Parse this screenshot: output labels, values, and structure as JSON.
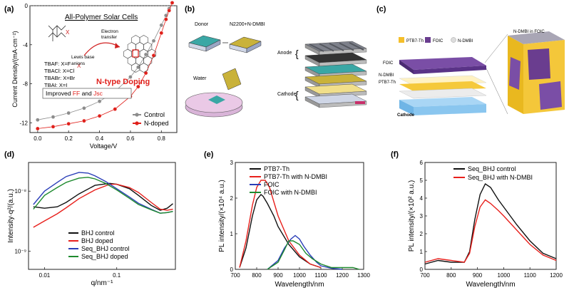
{
  "panels": {
    "a": {
      "label": "(a)",
      "title": "All-Polymer Solar Cells",
      "anions": [
        "TBAF: X=F",
        "TBACl: X=Cl",
        "TBABr: X=Br",
        "TBAI: X=I"
      ],
      "anion_symbol": "X",
      "electron_transfer": "Electron\ntransfer",
      "lewis": "Lewis base\nanions",
      "ntype": "N-type Doping",
      "improved_prefix": "Improved",
      "improved_ff": "FF",
      "improved_and": "and",
      "improved_jsc": "Jsc"
    },
    "b": {
      "label": "(b)",
      "donor": "Donor",
      "n2200": "N2200+N-DMBI",
      "water": "Water",
      "anode": "Anode",
      "cathode": "Cathode"
    },
    "c": {
      "label": "(c)",
      "legend": [
        "PTB7-Th",
        "FOIC",
        "N-DMBI"
      ],
      "foic": "FOIC",
      "ndmbi": "N-DMBI",
      "ptb7": "PTB7-Th",
      "cathode": "Cathode",
      "inset": "N-DMBI in FOIC"
    },
    "d": {
      "label": "(d)"
    },
    "e": {
      "label": "(e)"
    },
    "f": {
      "label": "(f)"
    }
  },
  "colors": {
    "control": "#8c8c8c",
    "ndoped": "#e0201b",
    "black": "#111111",
    "red": "#e8201c",
    "blue": "#2a3eb8",
    "green": "#1e8a2e"
  },
  "chart_data": [
    {
      "id": "a",
      "type": "line",
      "ylabel": "Current Density/(mA·cm⁻²)",
      "xlabel": "Voltage/V",
      "xlim": [
        -0.05,
        0.9
      ],
      "ylim": [
        -13,
        0
      ],
      "xticks": [
        "0.0",
        "0.2",
        "0.4",
        "0.6",
        "0.8"
      ],
      "yticks": [
        "0",
        "-4",
        "-8",
        "-12"
      ],
      "legend_position": "bottom-right",
      "series": [
        {
          "name": "Control",
          "x": [
            0,
            0.1,
            0.2,
            0.3,
            0.4,
            0.5,
            0.6,
            0.65,
            0.7,
            0.75,
            0.8,
            0.83,
            0.85,
            0.87
          ],
          "y": [
            -11.7,
            -11.4,
            -11.0,
            -10.5,
            -9.8,
            -8.8,
            -7.3,
            -6.3,
            -5.0,
            -3.6,
            -2.0,
            -1.0,
            -0.3,
            0.3
          ]
        },
        {
          "name": "N-doped",
          "x": [
            0,
            0.1,
            0.2,
            0.3,
            0.4,
            0.5,
            0.6,
            0.65,
            0.7,
            0.75,
            0.8,
            0.83,
            0.85,
            0.87
          ],
          "y": [
            -12.6,
            -12.4,
            -12.1,
            -11.8,
            -11.3,
            -10.6,
            -9.3,
            -8.3,
            -6.9,
            -5.1,
            -2.8,
            -1.4,
            -0.5,
            0.3
          ]
        }
      ]
    },
    {
      "id": "d",
      "type": "line",
      "ylabel": "Intensity·q²/(a.u.)",
      "xlabel": "q/nm⁻¹",
      "x_scale": "log",
      "y_scale": "log",
      "xlim": [
        0.006,
        0.65
      ],
      "ylim": [
        5e-10,
        3e-08
      ],
      "xticks": [
        "0.01",
        "0.1"
      ],
      "yticks": [
        "10⁻⁸",
        "10⁻⁹"
      ],
      "legend_position": "bottom-center",
      "series": [
        {
          "name": "BHJ control",
          "x": [
            0.007,
            0.01,
            0.015,
            0.02,
            0.03,
            0.05,
            0.08,
            0.1,
            0.15,
            0.2,
            0.3,
            0.4,
            0.5,
            0.6
          ],
          "y": [
            5.5e-09,
            5.2e-09,
            5.5e-09,
            6.5e-09,
            9e-09,
            1.25e-08,
            1.35e-08,
            1.3e-08,
            1.1e-08,
            8.5e-09,
            5.8e-09,
            4.8e-09,
            5.2e-09,
            6.2e-09
          ]
        },
        {
          "name": "BHJ  doped",
          "x": [
            0.007,
            0.01,
            0.015,
            0.02,
            0.03,
            0.05,
            0.08,
            0.1,
            0.15,
            0.2,
            0.3,
            0.4,
            0.5,
            0.6
          ],
          "y": [
            2.5e-09,
            3.2e-09,
            4.2e-09,
            5.3e-09,
            7.5e-09,
            1.05e-08,
            1.3e-08,
            1.3e-08,
            1.15e-08,
            9.5e-09,
            6.5e-09,
            5e-09,
            4.8e-09,
            5e-09
          ]
        },
        {
          "name": "Seq_BHJ control",
          "x": [
            0.007,
            0.01,
            0.015,
            0.02,
            0.03,
            0.04,
            0.05,
            0.07,
            0.1,
            0.15,
            0.2,
            0.3,
            0.4,
            0.5,
            0.6
          ],
          "y": [
            6e-09,
            1e-08,
            1.4e-08,
            1.75e-08,
            2.05e-08,
            2e-08,
            1.8e-08,
            1.45e-08,
            1.1e-08,
            8e-09,
            6.3e-09,
            5e-09,
            4.3e-09,
            4.4e-09,
            4.6e-09
          ]
        },
        {
          "name": "Seq_BHJ  doped",
          "x": [
            0.007,
            0.01,
            0.015,
            0.02,
            0.03,
            0.04,
            0.05,
            0.07,
            0.1,
            0.15,
            0.2,
            0.3,
            0.4,
            0.5,
            0.6
          ],
          "y": [
            5e-09,
            8.5e-09,
            1.15e-08,
            1.4e-08,
            1.65e-08,
            1.7e-08,
            1.6e-08,
            1.35e-08,
            1.05e-08,
            7.6e-09,
            6e-09,
            4.9e-09,
            4.3e-09,
            4.4e-09,
            4.6e-09
          ]
        }
      ]
    },
    {
      "id": "e",
      "type": "line",
      "ylabel": "PL intensity/(×10⁴ a.u.)",
      "xlabel": "Wavelength/nm",
      "xlim": [
        700,
        1300
      ],
      "ylim": [
        0,
        3
      ],
      "xticks": [
        "700",
        "800",
        "900",
        "1000",
        "1100",
        "1200",
        "1300"
      ],
      "yticks": [
        "0",
        "1",
        "2",
        "3"
      ],
      "legend_position": "top-right",
      "series": [
        {
          "name": "PTB7-Th",
          "x": [
            720,
            750,
            780,
            800,
            820,
            830,
            850,
            880,
            900,
            950,
            1000,
            1050,
            1100
          ],
          "y": [
            0.05,
            0.6,
            1.5,
            1.95,
            2.1,
            2.05,
            1.85,
            1.5,
            1.2,
            0.7,
            0.35,
            0.15,
            0.05
          ]
        },
        {
          "name": "PTB7-Th with N-DMBI",
          "x": [
            720,
            750,
            780,
            800,
            820,
            840,
            860,
            880,
            900,
            950,
            1000,
            1050,
            1100
          ],
          "y": [
            0.05,
            0.8,
            1.8,
            2.3,
            2.5,
            2.5,
            2.3,
            1.9,
            1.5,
            0.8,
            0.4,
            0.15,
            0.05
          ]
        },
        {
          "name": "FOIC",
          "x": [
            850,
            900,
            930,
            960,
            980,
            1000,
            1020,
            1050,
            1080,
            1100,
            1150,
            1200
          ],
          "y": [
            0.0,
            0.25,
            0.6,
            0.85,
            0.95,
            0.85,
            0.65,
            0.4,
            0.2,
            0.1,
            0.03,
            0.0
          ]
        },
        {
          "name": "FOIC with N-DMBI",
          "x": [
            850,
            900,
            930,
            950,
            970,
            1000,
            1030,
            1060,
            1100,
            1150,
            1200,
            1250,
            1280
          ],
          "y": [
            0.0,
            0.2,
            0.55,
            0.8,
            0.8,
            0.7,
            0.45,
            0.3,
            0.15,
            0.05,
            0.05,
            0.05,
            0.0
          ]
        }
      ]
    },
    {
      "id": "f",
      "type": "line",
      "ylabel": "PL intensity/(×10² a.u.)",
      "xlabel": "Wavelength/nm",
      "xlim": [
        700,
        1200
      ],
      "ylim": [
        0,
        6
      ],
      "xticks": [
        "700",
        "800",
        "900",
        "1000",
        "1100",
        "1200"
      ],
      "yticks": [
        "0",
        "1",
        "2",
        "3",
        "4",
        "5",
        "6"
      ],
      "legend_position": "top-right",
      "series": [
        {
          "name": "Seq_BHJ control",
          "x": [
            700,
            750,
            800,
            850,
            870,
            890,
            910,
            930,
            950,
            980,
            1000,
            1050,
            1100,
            1150,
            1200
          ],
          "y": [
            0.3,
            0.5,
            0.4,
            0.4,
            1.0,
            2.8,
            4.2,
            4.8,
            4.6,
            3.9,
            3.5,
            2.5,
            1.6,
            0.9,
            0.6
          ]
        },
        {
          "name": "Seq_BHJ with N-DMBI",
          "x": [
            700,
            750,
            800,
            850,
            870,
            890,
            910,
            930,
            950,
            980,
            1000,
            1050,
            1100,
            1150,
            1200
          ],
          "y": [
            0.4,
            0.6,
            0.5,
            0.4,
            0.9,
            2.4,
            3.5,
            3.9,
            3.7,
            3.3,
            3.0,
            2.2,
            1.4,
            0.8,
            0.5
          ]
        }
      ]
    }
  ]
}
